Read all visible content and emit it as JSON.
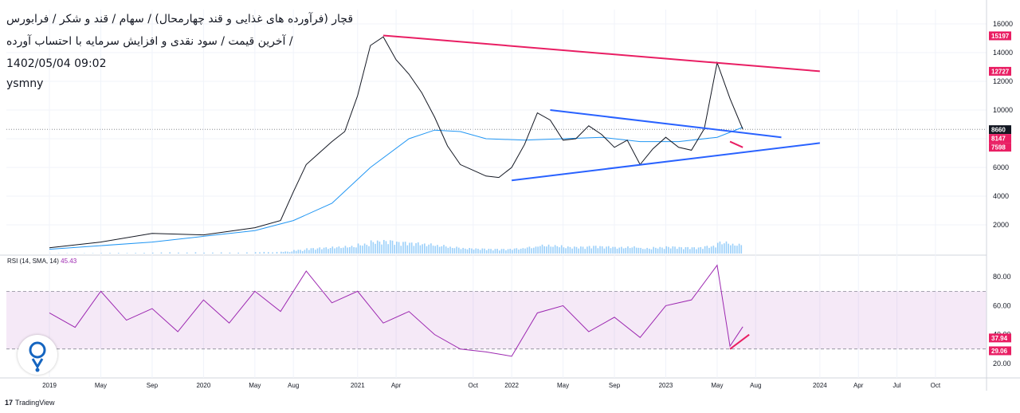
{
  "header": {
    "title": "قچار (فرآورده های غذایی و قند چهارمحال) / سهام / قند و شکر / فرابورس",
    "subtitle": "آخرین قیمت / سود نقدی و افزایش سرمایه با احتساب آورده /",
    "datetime": "1402/05/04 09:02",
    "author": "ysmny"
  },
  "rsi": {
    "label": "RSI (14, SMA, 14)",
    "value": "45.43",
    "level_upper": 70,
    "level_lower": 30
  },
  "footer": {
    "brand": "TradingView"
  },
  "colors": {
    "price": "#131722",
    "ma": "#2196f3",
    "volume": "#2196f3",
    "rsi": "#9c27b0",
    "rsi_band": "#9c27b0",
    "trend_red": "#e91e63",
    "trend_blue": "#2962ff",
    "tag_red": "#e91e63",
    "tag_dark": "#131722"
  },
  "chart_data": [
    {
      "type": "line",
      "title": "قچار",
      "x_ticks": [
        "2019",
        "May",
        "Sep",
        "2020",
        "May",
        "Aug",
        "2021",
        "Apr",
        "Oct",
        "2022",
        "May",
        "Sep",
        "2023",
        "May",
        "Aug",
        "2024",
        "Apr",
        "Jul",
        "Oct"
      ],
      "y_ticks": [
        2000,
        4000,
        6000,
        8000,
        10000,
        12000,
        14000,
        16000
      ],
      "ylim": [
        0,
        17000
      ],
      "price_tags": [
        {
          "label": "15197",
          "value": 15197,
          "style": "red"
        },
        {
          "label": "12727",
          "value": 12727,
          "style": "red"
        },
        {
          "label": "8660",
          "value": 8660,
          "style": "dark"
        },
        {
          "label": "8147",
          "value": 8147,
          "style": "red"
        },
        {
          "label": "7598",
          "value": 7598,
          "style": "red"
        }
      ],
      "series": [
        {
          "kind": "price",
          "x": [
            "2019-01",
            "2019-05",
            "2019-09",
            "2020-01",
            "2020-05",
            "2020-07",
            "2020-08",
            "2020-09",
            "2020-10",
            "2020-11",
            "2020-12",
            "2021-01",
            "2021-02",
            "2021-03",
            "2021-04",
            "2021-05",
            "2021-06",
            "2021-07",
            "2021-08",
            "2021-09",
            "2021-10",
            "2021-11",
            "2021-12",
            "2022-01",
            "2022-02",
            "2022-03",
            "2022-04",
            "2022-05",
            "2022-06",
            "2022-07",
            "2022-08",
            "2022-09",
            "2022-10",
            "2022-11",
            "2022-12",
            "2023-01",
            "2023-02",
            "2023-03",
            "2023-04",
            "2023-05",
            "2023-06",
            "2023-07"
          ],
          "y": [
            400,
            800,
            1400,
            1300,
            1800,
            2300,
            4300,
            6200,
            7000,
            7800,
            8500,
            11000,
            14500,
            15100,
            13500,
            12500,
            11200,
            9500,
            7500,
            6200,
            5800,
            5400,
            5300,
            6000,
            7600,
            9800,
            9300,
            7900,
            8000,
            8900,
            8300,
            7400,
            7900,
            6200,
            7300,
            8100,
            7400,
            7200,
            8700,
            13300,
            10800,
            8660
          ]
        },
        {
          "kind": "moving-average",
          "x": [
            "2019-01",
            "2019-09",
            "2020-05",
            "2020-08",
            "2020-11",
            "2021-02",
            "2021-05",
            "2021-07",
            "2021-09",
            "2021-11",
            "2022-02",
            "2022-05",
            "2022-08",
            "2022-11",
            "2023-02",
            "2023-05",
            "2023-07"
          ],
          "y": [
            300,
            800,
            1600,
            2300,
            3500,
            6000,
            8000,
            8600,
            8500,
            8000,
            7900,
            8000,
            8100,
            7800,
            7800,
            8100,
            8800
          ]
        }
      ],
      "trendlines": [
        {
          "color": "red",
          "from": [
            "2021-03",
            15197
          ],
          "to": [
            "2024-01",
            12700
          ]
        },
        {
          "color": "blue",
          "from": [
            "2022-04",
            10000
          ],
          "to": [
            "2023-10",
            8100
          ]
        },
        {
          "color": "blue",
          "from": [
            "2022-01",
            5100
          ],
          "to": [
            "2024-01",
            7700
          ]
        },
        {
          "color": "red",
          "from": [
            "2023-06",
            7800
          ],
          "to": [
            "2023-07",
            7400
          ]
        }
      ]
    },
    {
      "type": "line",
      "title": "RSI (14, SMA, 14)",
      "y_ticks": [
        20.0,
        40.0,
        60.0,
        80.0
      ],
      "ylim": [
        10,
        95
      ],
      "levels": [
        {
          "label": "37.94",
          "value": 37.94
        },
        {
          "label": "29.06",
          "value": 29.06
        }
      ],
      "series": [
        {
          "kind": "rsi",
          "x": [
            "2019-01",
            "2019-03",
            "2019-05",
            "2019-07",
            "2019-09",
            "2019-11",
            "2020-01",
            "2020-03",
            "2020-05",
            "2020-07",
            "2020-09",
            "2020-11",
            "2021-01",
            "2021-03",
            "2021-05",
            "2021-07",
            "2021-09",
            "2021-11",
            "2022-01",
            "2022-03",
            "2022-05",
            "2022-07",
            "2022-09",
            "2022-11",
            "2023-01",
            "2023-03",
            "2023-05",
            "2023-06",
            "2023-07"
          ],
          "y": [
            55,
            45,
            70,
            50,
            58,
            42,
            64,
            48,
            70,
            56,
            84,
            62,
            70,
            48,
            56,
            40,
            30,
            28,
            25,
            55,
            60,
            42,
            52,
            38,
            60,
            64,
            88,
            32,
            45.43
          ]
        }
      ]
    }
  ]
}
